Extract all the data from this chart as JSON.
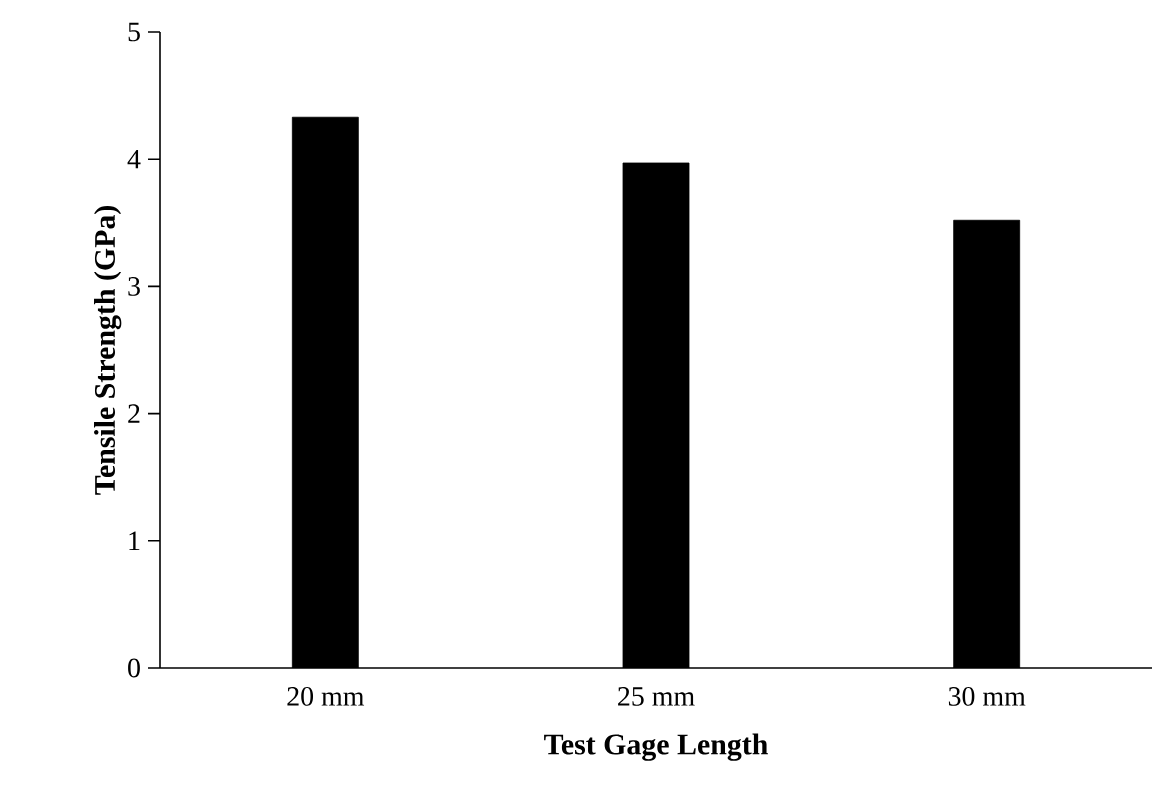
{
  "chart_data": {
    "type": "bar",
    "xlabel": "Test Gage Length",
    "ylabel": "Tensile Strength (GPa)",
    "categories": [
      "20 mm",
      "25 mm",
      "30 mm"
    ],
    "values": [
      4.33,
      3.97,
      3.52
    ],
    "color": "#000000",
    "ylim": [
      0,
      5
    ],
    "yticks": [
      0,
      1,
      2,
      3,
      4,
      5
    ]
  }
}
